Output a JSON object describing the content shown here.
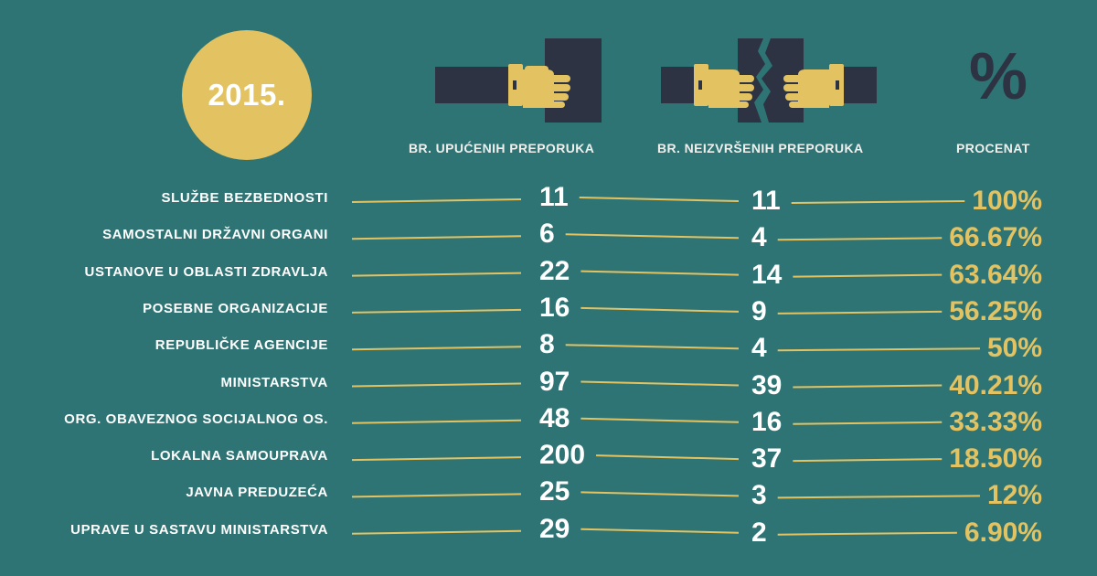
{
  "year": "2015.",
  "headers": {
    "sent": "BR. UPUĆENIH PREPORUKA",
    "unfulfilled": "BR. NEIZVRŠENIH PREPORUKA",
    "percent": "PROCENAT"
  },
  "percent_symbol": "%",
  "colors": {
    "background": "#2e7474",
    "gold": "#e3c262",
    "dark": "#2d3342",
    "text": "#ffffff"
  },
  "chart_data": {
    "type": "table",
    "columns": [
      "BR. UPUĆENIH PREPORUKA",
      "BR. NEIZVRŠENIH PREPORUKA",
      "PROCENAT"
    ],
    "rows": [
      {
        "label": "SLUŽBE BEZBEDNOSTI",
        "sent": "11",
        "unfulfilled": "11",
        "percent": "100%"
      },
      {
        "label": "SAMOSTALNI DRŽAVNI ORGANI",
        "sent": "6",
        "unfulfilled": "4",
        "percent": "66.67%"
      },
      {
        "label": "USTANOVE U OBLASTI ZDRAVLJA",
        "sent": "22",
        "unfulfilled": "14",
        "percent": "63.64%"
      },
      {
        "label": "POSEBNE ORGANIZACIJE",
        "sent": "16",
        "unfulfilled": "9",
        "percent": "56.25%"
      },
      {
        "label": "REPUBLIČKE AGENCIJE",
        "sent": "8",
        "unfulfilled": "4",
        "percent": "50%"
      },
      {
        "label": "MINISTARSTVA",
        "sent": "97",
        "unfulfilled": "39",
        "percent": "40.21%"
      },
      {
        "label": "ORG. OBAVEZNOG SOCIJALNOG OS.",
        "sent": "48",
        "unfulfilled": "16",
        "percent": "33.33%"
      },
      {
        "label": "LOKALNA SAMOUPRAVA",
        "sent": "200",
        "unfulfilled": "37",
        "percent": "18.50%"
      },
      {
        "label": "JAVNA PREDUZEĆA",
        "sent": "25",
        "unfulfilled": "3",
        "percent": "12%"
      },
      {
        "label": "UPRAVE U SASTAVU MINISTARSTVA",
        "sent": "29",
        "unfulfilled": "2",
        "percent": "6.90%"
      }
    ]
  }
}
